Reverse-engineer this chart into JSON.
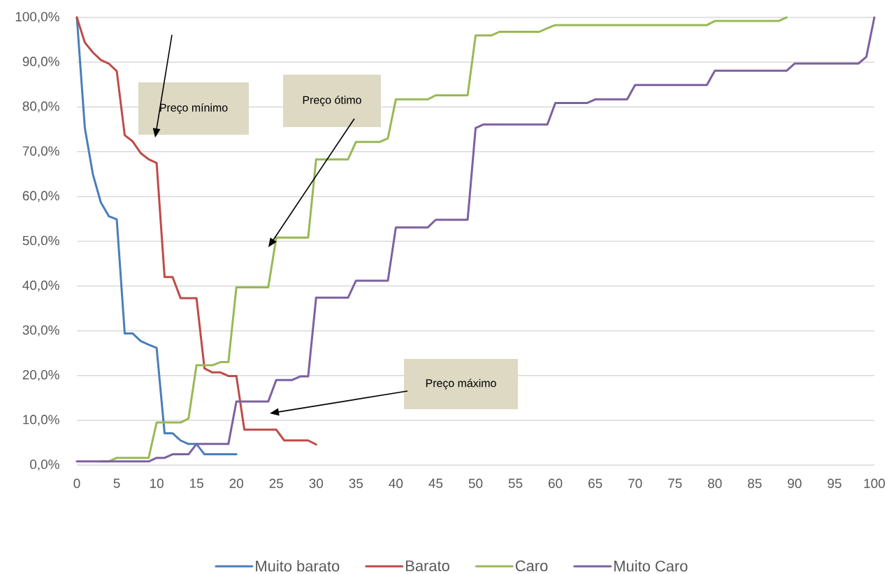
{
  "chart_data": {
    "type": "line",
    "x": [
      0,
      1,
      2,
      3,
      4,
      5,
      6,
      7,
      8,
      9,
      10,
      11,
      12,
      13,
      14,
      15,
      16,
      17,
      18,
      19,
      20,
      21,
      22,
      23,
      24,
      25,
      26,
      27,
      28,
      29,
      30,
      31,
      32,
      33,
      34,
      35,
      36,
      37,
      38,
      39,
      40,
      41,
      42,
      43,
      44,
      45,
      46,
      47,
      48,
      49,
      50,
      51,
      52,
      53,
      54,
      55,
      56,
      57,
      58,
      59,
      60,
      61,
      62,
      63,
      64,
      65,
      66,
      67,
      68,
      69,
      70,
      71,
      72,
      73,
      74,
      75,
      76,
      77,
      78,
      79,
      80,
      81,
      82,
      83,
      84,
      85,
      86,
      87,
      88,
      89,
      90,
      91,
      92,
      93,
      94,
      95,
      96,
      97,
      98,
      99,
      100
    ],
    "xlim": [
      0,
      100
    ],
    "ylim": [
      0,
      100
    ],
    "xticks": [
      0,
      5,
      10,
      15,
      20,
      25,
      30,
      35,
      40,
      45,
      50,
      55,
      60,
      65,
      70,
      75,
      80,
      85,
      90,
      95,
      100
    ],
    "yticks": [
      {
        "value": 0,
        "label": "0,0%"
      },
      {
        "value": 10,
        "label": "10,0%"
      },
      {
        "value": 20,
        "label": "20,0%"
      },
      {
        "value": 30,
        "label": "30,0%"
      },
      {
        "value": 40,
        "label": "40,0%"
      },
      {
        "value": 50,
        "label": "50,0%"
      },
      {
        "value": 60,
        "label": "60,0%"
      },
      {
        "value": 70,
        "label": "70,0%"
      },
      {
        "value": 80,
        "label": "80,0%"
      },
      {
        "value": 90,
        "label": "90,0%"
      },
      {
        "value": 100,
        "label": "100,0%"
      }
    ],
    "grid": "y",
    "legend": "bottom",
    "line_style": "solid",
    "series": [
      {
        "name": "Muito barato",
        "color": "#4a7ebb",
        "values": [
          100,
          75.3,
          65.0,
          58.7,
          55.6,
          54.9,
          29.4,
          29.4,
          27.7,
          26.9,
          26.2,
          7.1,
          7.1,
          5.5,
          4.7,
          4.7,
          2.4,
          2.4,
          2.4,
          2.4,
          2.4,
          null,
          null,
          null,
          null,
          null,
          null,
          null,
          null,
          null,
          null,
          null,
          null,
          null,
          null,
          null,
          null,
          null,
          null,
          null,
          null,
          null,
          null,
          null,
          null,
          null,
          null,
          null,
          null,
          null,
          null,
          null,
          null,
          null,
          null,
          null,
          null,
          null,
          null,
          null,
          null,
          null,
          null,
          null,
          null,
          null,
          null,
          null,
          null,
          null,
          null,
          null,
          null,
          null,
          null,
          null,
          null,
          null,
          null,
          null,
          null,
          null,
          null,
          null,
          null,
          null,
          null,
          null,
          null,
          null,
          null,
          null,
          null,
          null,
          null,
          null,
          null,
          null,
          null,
          null,
          null
        ]
      },
      {
        "name": "Barato",
        "color": "#be4b48",
        "values": [
          100,
          94.4,
          92.2,
          90.5,
          89.7,
          88.0,
          73.7,
          72.3,
          69.7,
          68.3,
          67.5,
          42.0,
          42.0,
          37.3,
          37.3,
          37.3,
          21.6,
          20.7,
          20.7,
          19.9,
          19.9,
          7.9,
          7.9,
          7.9,
          7.9,
          7.9,
          5.5,
          5.5,
          5.5,
          5.5,
          4.6,
          null,
          null,
          null,
          null,
          null,
          null,
          null,
          null,
          null,
          null,
          null,
          null,
          null,
          null,
          null,
          null,
          null,
          null,
          null,
          null,
          null,
          null,
          null,
          null,
          null,
          null,
          null,
          null,
          null,
          null,
          null,
          null,
          null,
          null,
          null,
          null,
          null,
          null,
          null,
          null,
          null,
          null,
          null,
          null,
          null,
          null,
          null,
          null,
          null,
          null,
          null,
          null,
          null,
          null,
          null,
          null,
          null,
          null,
          null,
          null,
          null,
          null,
          null,
          null,
          null,
          null,
          null,
          null,
          null,
          null
        ]
      },
      {
        "name": "Caro",
        "color": "#98b954",
        "values": [
          null,
          null,
          null,
          0.8,
          0.8,
          1.6,
          1.6,
          1.6,
          1.6,
          1.6,
          9.5,
          9.5,
          9.5,
          9.5,
          10.4,
          22.3,
          22.3,
          22.3,
          23.0,
          23.0,
          39.7,
          39.7,
          39.7,
          39.7,
          39.7,
          50.8,
          50.8,
          50.8,
          50.8,
          50.8,
          68.3,
          68.3,
          68.3,
          68.3,
          68.3,
          72.2,
          72.2,
          72.2,
          72.2,
          73.0,
          81.7,
          81.7,
          81.7,
          81.7,
          81.7,
          82.6,
          82.6,
          82.6,
          82.6,
          82.6,
          96.0,
          96.0,
          96.0,
          96.8,
          96.8,
          96.8,
          96.8,
          96.8,
          96.8,
          97.6,
          98.3,
          98.3,
          98.3,
          98.3,
          98.3,
          98.3,
          98.3,
          98.3,
          98.3,
          98.3,
          98.3,
          98.3,
          98.3,
          98.3,
          98.3,
          98.3,
          98.3,
          98.3,
          98.3,
          98.3,
          99.2,
          99.2,
          99.2,
          99.2,
          99.2,
          99.2,
          99.2,
          99.2,
          99.2,
          100,
          null,
          null,
          null,
          null,
          null,
          null,
          null,
          null,
          null,
          null,
          null
        ]
      },
      {
        "name": "Muito Caro",
        "color": "#7d60a0",
        "values": [
          0.8,
          0.8,
          0.8,
          0.8,
          0.8,
          0.8,
          0.8,
          0.8,
          0.8,
          0.8,
          1.6,
          1.6,
          2.4,
          2.4,
          2.4,
          4.7,
          4.7,
          4.7,
          4.7,
          4.7,
          14.2,
          14.2,
          14.2,
          14.2,
          14.2,
          19.0,
          19.0,
          19.0,
          19.8,
          19.8,
          37.4,
          37.4,
          37.4,
          37.4,
          37.4,
          41.2,
          41.2,
          41.2,
          41.2,
          41.2,
          53.1,
          53.1,
          53.1,
          53.1,
          53.1,
          54.8,
          54.8,
          54.8,
          54.8,
          54.8,
          75.3,
          76.1,
          76.1,
          76.1,
          76.1,
          76.1,
          76.1,
          76.1,
          76.1,
          76.1,
          80.9,
          80.9,
          80.9,
          80.9,
          80.9,
          81.7,
          81.7,
          81.7,
          81.7,
          81.7,
          84.9,
          84.9,
          84.9,
          84.9,
          84.9,
          84.9,
          84.9,
          84.9,
          84.9,
          84.9,
          88.1,
          88.1,
          88.1,
          88.1,
          88.1,
          88.1,
          88.1,
          88.1,
          88.1,
          88.1,
          89.7,
          89.7,
          89.7,
          89.7,
          89.7,
          89.7,
          89.7,
          89.7,
          89.7,
          91.2,
          100
        ]
      }
    ],
    "annotations": [
      "Preço mínimo",
      "Preço ótimo",
      "Preço máximo"
    ]
  }
}
